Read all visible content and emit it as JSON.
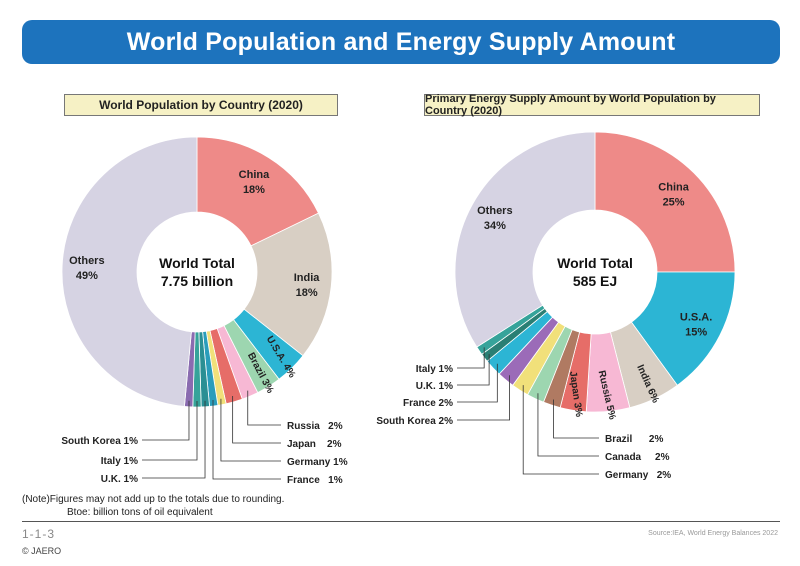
{
  "page": {
    "title": "World Population and Energy Supply Amount",
    "note_line1": "(Note)Figures may not add up to the totals due to rounding.",
    "note_line2": "Btoe: billion tons of oil equivalent",
    "page_number": "1-1-3",
    "copyright": "© JAERO",
    "source": "Source:IEA, World Energy Balances 2022"
  },
  "colors": {
    "banner": "#1d73bd",
    "subtitle_bg": "#f6f1c5"
  },
  "chart_data": [
    {
      "type": "pie",
      "title": "World Population by Country (2020)",
      "center_label": [
        "World Total",
        "7.75 billion"
      ],
      "categories": [
        "China",
        "India",
        "U.S.A.",
        "Brazil",
        "Russia",
        "Japan",
        "Germany",
        "France",
        "U.K.",
        "Italy",
        "South Korea",
        "Others"
      ],
      "values": [
        18,
        18,
        4,
        3,
        2,
        2,
        1,
        1,
        1,
        1,
        1,
        49
      ],
      "labels": [
        "China\n18%",
        "India\n18%",
        "U.S.A. 4%",
        "Brazil 3%",
        "Russia   2%",
        "Japan    2%",
        "Germany 1%",
        "France   1%",
        "U.K. 1%",
        "Italy 1%",
        "South Korea 1%",
        "Others\n49%"
      ],
      "colors": [
        "#ee8a88",
        "#d8cfc4",
        "#2cb5d4",
        "#9dd6b0",
        "#f7b8d4",
        "#e66d68",
        "#f1e07a",
        "#2a9dbb",
        "#2a8f94",
        "#36a39a",
        "#8a6bb0",
        "#d6d3e3"
      ]
    },
    {
      "type": "pie",
      "title": "Primary Energy Supply Amount by World Population by Country (2020)",
      "center_label": [
        "World Total",
        "585 EJ"
      ],
      "categories": [
        "China",
        "U.S.A.",
        "India",
        "Russia",
        "Japan",
        "Brazil",
        "Canada",
        "Germany",
        "South Korea",
        "France",
        "U.K.",
        "Italy",
        "Others"
      ],
      "values": [
        25,
        15,
        6,
        5,
        3,
        2,
        2,
        2,
        2,
        2,
        1,
        1,
        34
      ],
      "labels": [
        "China\n25%",
        "U.S.A.\n15%",
        "India 6%",
        "Russia 5%",
        "Japan 3%",
        "Brazil      2%",
        "Canada     2%",
        "Germany   2%",
        "South Korea 2%",
        "France 2%",
        "U.K. 1%",
        "Italy 1%",
        "Others\n34%"
      ],
      "colors": [
        "#ee8a88",
        "#2cb5d4",
        "#d8cfc4",
        "#f7b8d4",
        "#e66d68",
        "#b07a62",
        "#9dd6b0",
        "#f1e07a",
        "#9b6bb8",
        "#2cb5d4",
        "#2a7f74",
        "#36a39a",
        "#d6d3e3"
      ]
    }
  ]
}
